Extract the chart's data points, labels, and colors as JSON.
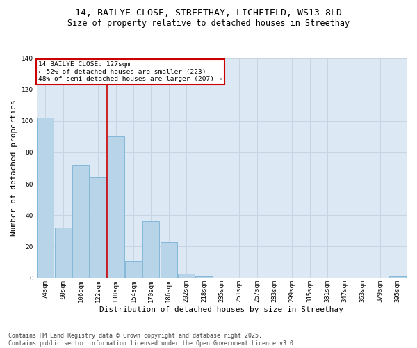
{
  "title_line1": "14, BAILYE CLOSE, STREETHAY, LICHFIELD, WS13 8LD",
  "title_line2": "Size of property relative to detached houses in Streethay",
  "xlabel": "Distribution of detached houses by size in Streethay",
  "ylabel": "Number of detached properties",
  "categories": [
    "74sqm",
    "90sqm",
    "106sqm",
    "122sqm",
    "138sqm",
    "154sqm",
    "170sqm",
    "186sqm",
    "202sqm",
    "218sqm",
    "235sqm",
    "251sqm",
    "267sqm",
    "283sqm",
    "299sqm",
    "315sqm",
    "331sqm",
    "347sqm",
    "363sqm",
    "379sqm",
    "395sqm"
  ],
  "values": [
    102,
    32,
    72,
    64,
    90,
    11,
    36,
    23,
    3,
    1,
    0,
    0,
    0,
    0,
    0,
    0,
    0,
    0,
    0,
    0,
    1
  ],
  "bar_color": "#b8d4e8",
  "bar_edge_color": "#6aaad0",
  "grid_color": "#c8d4e4",
  "background_color": "#dce8f4",
  "ylim": [
    0,
    140
  ],
  "yticks": [
    0,
    20,
    40,
    60,
    80,
    100,
    120,
    140
  ],
  "vline_x_index": 3.5,
  "vline_color": "#cc0000",
  "annotation_text": "14 BAILYE CLOSE: 127sqm\n← 52% of detached houses are smaller (223)\n48% of semi-detached houses are larger (207) →",
  "annotation_box_color": "#cc0000",
  "footnote": "Contains HM Land Registry data © Crown copyright and database right 2025.\nContains public sector information licensed under the Open Government Licence v3.0.",
  "title_fontsize": 9.5,
  "subtitle_fontsize": 8.5,
  "axis_fontsize": 8,
  "tick_fontsize": 6.5,
  "annot_fontsize": 6.8,
  "footnote_fontsize": 6.0
}
